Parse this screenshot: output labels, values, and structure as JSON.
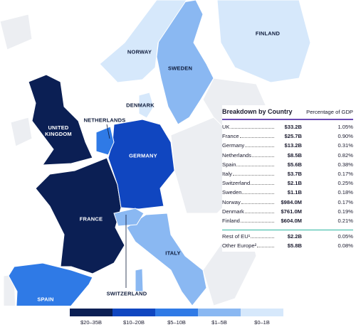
{
  "map": {
    "regions": [
      {
        "label": "UNITED KINGDOM",
        "color": "#0b1f54"
      },
      {
        "label": "FRANCE",
        "color": "#0b1f54"
      },
      {
        "label": "GERMANY",
        "color": "#1046c0"
      },
      {
        "label": "NETHERLANDS",
        "color": "#2f7ae6"
      },
      {
        "label": "SPAIN",
        "color": "#2f7ae6"
      },
      {
        "label": "ITALY",
        "color": "#8ab8f2"
      },
      {
        "label": "SWITZERLAND",
        "color": "#8ab8f2"
      },
      {
        "label": "SWEDEN",
        "color": "#8ab8f2"
      },
      {
        "label": "NORWAY",
        "color": "#d6e8fb"
      },
      {
        "label": "DENMARK",
        "color": "#d6e8fb"
      },
      {
        "label": "FINLAND",
        "color": "#d6e8fb"
      }
    ]
  },
  "table": {
    "title": "Breakdown by Country",
    "subtitle": "Percentage of GDP",
    "rows": [
      {
        "country": "UK",
        "value": "$33.2B",
        "pct": "1.05%"
      },
      {
        "country": "France",
        "value": "$25.7B",
        "pct": "0.90%"
      },
      {
        "country": "Germany",
        "value": "$13.2B",
        "pct": "0.31%"
      },
      {
        "country": "Netherlands",
        "value": "$8.5B",
        "pct": "0.82%"
      },
      {
        "country": "Spain",
        "value": "$5.6B",
        "pct": "0.38%"
      },
      {
        "country": "Italy",
        "value": "$3.7B",
        "pct": "0.17%"
      },
      {
        "country": "Switzerland",
        "value": "$2.1B",
        "pct": "0.25%"
      },
      {
        "country": "Sweden",
        "value": "$1.1B",
        "pct": "0.18%"
      },
      {
        "country": "Norway",
        "value": "$984.0M",
        "pct": "0.17%"
      },
      {
        "country": "Denmark",
        "value": "$761.0M",
        "pct": "0.19%"
      },
      {
        "country": "Finland",
        "value": "$604.0M",
        "pct": "0.21%"
      }
    ],
    "other_rows": [
      {
        "country": "Rest of EU¹",
        "value": "$2.2B",
        "pct": "0.05%"
      },
      {
        "country": "Other Europe²",
        "value": "$5.8B",
        "pct": "0.08%"
      }
    ]
  },
  "legend": [
    {
      "label": "$20–35B",
      "color": "#0b1f54"
    },
    {
      "label": "$10–20B",
      "color": "#1046c0"
    },
    {
      "label": "$5–10B",
      "color": "#2f7ae6"
    },
    {
      "label": "$1–5B",
      "color": "#8ab8f2"
    },
    {
      "label": "$0–1B",
      "color": "#d6e8fb"
    }
  ]
}
